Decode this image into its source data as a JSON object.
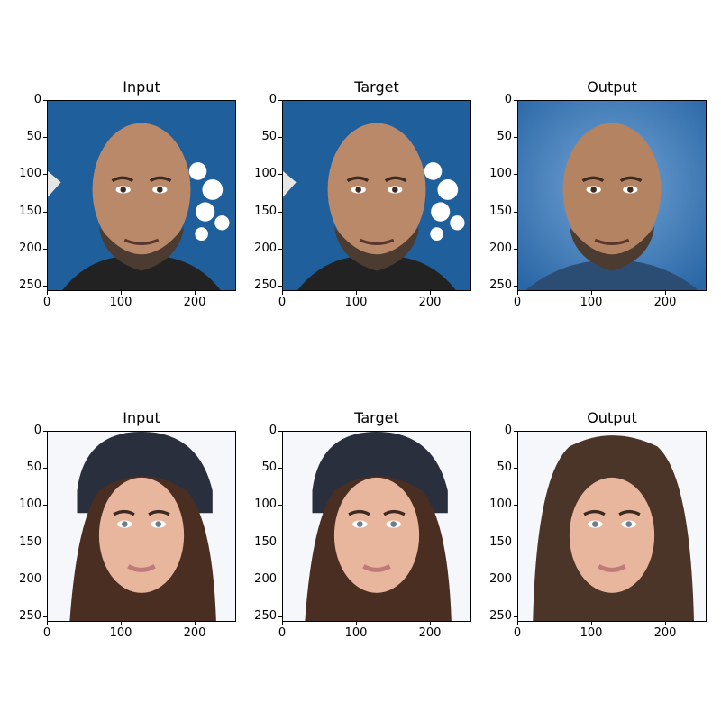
{
  "figure": {
    "rows": [
      {
        "panels": [
          {
            "title": "Input",
            "kind": "man",
            "variant": "input"
          },
          {
            "title": "Target",
            "kind": "man",
            "variant": "target"
          },
          {
            "title": "Output",
            "kind": "man",
            "variant": "output"
          }
        ]
      },
      {
        "panels": [
          {
            "title": "Input",
            "kind": "woman",
            "variant": "input"
          },
          {
            "title": "Target",
            "kind": "woman",
            "variant": "target"
          },
          {
            "title": "Output",
            "kind": "woman",
            "variant": "output"
          }
        ]
      }
    ],
    "y_ticks": [
      "0",
      "50",
      "100",
      "150",
      "200",
      "250"
    ],
    "x_ticks": [
      "0",
      "100",
      "200"
    ],
    "colors": {
      "backdrop_blue": "#1f5f9c",
      "backdrop_blue_output": "#3a7fbf",
      "backdrop_white": "#f6f7fb",
      "skin_man": "#b9896a",
      "skin_woman": "#e8b59d",
      "hair_woman": "#4a2e22",
      "hood": "#2a2f3d"
    }
  }
}
